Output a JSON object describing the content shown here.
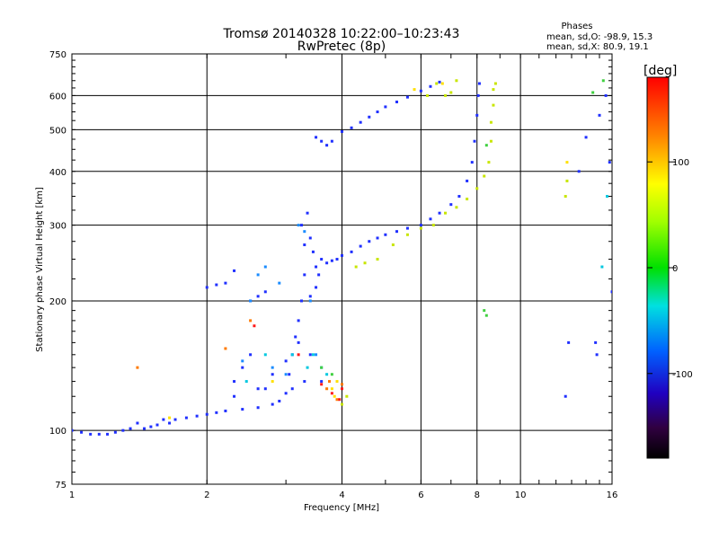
{
  "chart_data": {
    "type": "scatter",
    "title": "Tromsø 20140328 10:22:00–10:23:43",
    "subtitle": "RwPretec (8p)",
    "stats": {
      "heading": "Phases",
      "o_line": "mean, sd,O: -98.9, 15.3",
      "x_line": "mean, sd,X:  80.9, 19.1"
    },
    "xlabel": "Frequency [MHz]",
    "ylabel": "Stationary phase Virtual Height [km]",
    "x_scale": "log",
    "y_scale": "log",
    "xlim": [
      1,
      16
    ],
    "ylim": [
      75,
      750
    ],
    "x_ticks": [
      1,
      2,
      4,
      6,
      8,
      10,
      16
    ],
    "y_ticks": [
      75,
      100,
      200,
      300,
      400,
      500,
      600,
      750
    ],
    "grid": true,
    "colorbar": {
      "label": "[deg]",
      "min": -180,
      "max": 180,
      "ticks": [
        100,
        0,
        -100
      ]
    },
    "series": [
      {
        "phase": -100,
        "color": "#2030ff",
        "points": [
          [
            1.0,
            100
          ],
          [
            1.05,
            99
          ],
          [
            1.1,
            98
          ],
          [
            1.15,
            98
          ],
          [
            1.2,
            98
          ],
          [
            1.25,
            99
          ],
          [
            1.3,
            100
          ],
          [
            1.35,
            101
          ],
          [
            1.4,
            104
          ],
          [
            1.45,
            101
          ],
          [
            1.5,
            102
          ],
          [
            1.55,
            103
          ],
          [
            1.6,
            106
          ],
          [
            1.65,
            104
          ],
          [
            1.7,
            106
          ],
          [
            1.8,
            107
          ],
          [
            1.9,
            108
          ],
          [
            2.0,
            109
          ],
          [
            2.1,
            110
          ],
          [
            2.2,
            111
          ],
          [
            2.4,
            112
          ],
          [
            2.6,
            113
          ],
          [
            2.8,
            115
          ],
          [
            2.9,
            117
          ],
          [
            3.0,
            122
          ],
          [
            3.05,
            135
          ],
          [
            3.1,
            150
          ],
          [
            3.15,
            165
          ],
          [
            3.2,
            180
          ],
          [
            3.25,
            200
          ],
          [
            3.3,
            230
          ],
          [
            3.3,
            270
          ],
          [
            3.25,
            300
          ],
          [
            3.35,
            320
          ],
          [
            3.4,
            280
          ],
          [
            3.45,
            260
          ],
          [
            3.5,
            240
          ],
          [
            3.55,
            230
          ],
          [
            3.5,
            215
          ],
          [
            3.4,
            205
          ],
          [
            3.6,
            250
          ],
          [
            3.7,
            245
          ],
          [
            3.8,
            248
          ],
          [
            3.9,
            250
          ],
          [
            4.0,
            255
          ],
          [
            4.2,
            260
          ],
          [
            4.4,
            268
          ],
          [
            4.6,
            275
          ],
          [
            4.8,
            280
          ],
          [
            5.0,
            285
          ],
          [
            5.3,
            290
          ],
          [
            5.6,
            295
          ],
          [
            6.0,
            300
          ],
          [
            6.3,
            310
          ],
          [
            6.6,
            320
          ],
          [
            7.0,
            335
          ],
          [
            7.3,
            350
          ],
          [
            7.6,
            380
          ],
          [
            7.8,
            420
          ],
          [
            7.9,
            470
          ],
          [
            8.0,
            540
          ],
          [
            8.05,
            600
          ],
          [
            8.1,
            640
          ],
          [
            3.5,
            480
          ],
          [
            3.6,
            470
          ],
          [
            3.7,
            460
          ],
          [
            3.8,
            470
          ],
          [
            4.0,
            495
          ],
          [
            4.2,
            505
          ],
          [
            4.4,
            520
          ],
          [
            4.6,
            535
          ],
          [
            4.8,
            550
          ],
          [
            5.0,
            565
          ],
          [
            5.3,
            580
          ],
          [
            5.6,
            595
          ],
          [
            6.0,
            615
          ],
          [
            6.3,
            630
          ],
          [
            6.6,
            645
          ],
          [
            2.3,
            235
          ],
          [
            2.0,
            215
          ],
          [
            2.1,
            218
          ],
          [
            2.2,
            220
          ],
          [
            2.5,
            200
          ],
          [
            2.6,
            205
          ],
          [
            2.7,
            210
          ],
          [
            2.3,
            130
          ],
          [
            2.4,
            140
          ],
          [
            2.5,
            150
          ],
          [
            2.6,
            125
          ],
          [
            2.8,
            135
          ],
          [
            3.0,
            145
          ],
          [
            3.2,
            160
          ],
          [
            3.4,
            150
          ],
          [
            3.6,
            130
          ],
          [
            2.3,
            120
          ],
          [
            2.7,
            125
          ],
          [
            3.1,
            125
          ],
          [
            3.3,
            130
          ],
          [
            12.6,
            120
          ],
          [
            12.8,
            160
          ],
          [
            13.5,
            400
          ],
          [
            14.0,
            480
          ],
          [
            15.0,
            540
          ],
          [
            15.5,
            600
          ],
          [
            15.8,
            420
          ],
          [
            16.0,
            210
          ],
          [
            14.8,
            150
          ],
          [
            14.7,
            160
          ]
        ]
      },
      {
        "phase": -70,
        "color": "#1a8cff",
        "points": [
          [
            2.5,
            200
          ],
          [
            2.6,
            230
          ],
          [
            2.7,
            240
          ],
          [
            2.9,
            220
          ],
          [
            3.2,
            300
          ],
          [
            3.3,
            290
          ],
          [
            3.4,
            200
          ],
          [
            3.5,
            150
          ],
          [
            3.6,
            140
          ],
          [
            2.4,
            145
          ],
          [
            2.8,
            140
          ],
          [
            3.0,
            135
          ]
        ]
      },
      {
        "phase": -30,
        "color": "#00c8e0",
        "points": [
          [
            2.45,
            130
          ],
          [
            2.7,
            150
          ],
          [
            3.1,
            150
          ],
          [
            3.35,
            140
          ],
          [
            3.45,
            150
          ],
          [
            3.7,
            135
          ],
          [
            15.2,
            240
          ],
          [
            15.6,
            350
          ]
        ]
      },
      {
        "phase": 20,
        "color": "#40d040",
        "points": [
          [
            3.6,
            140
          ],
          [
            3.8,
            135
          ],
          [
            8.3,
            190
          ],
          [
            8.4,
            185
          ],
          [
            8.4,
            460
          ],
          [
            14.5,
            610
          ],
          [
            15.3,
            650
          ]
        ]
      },
      {
        "phase": 80,
        "color": "#c8e600",
        "points": [
          [
            4.3,
            240
          ],
          [
            4.5,
            245
          ],
          [
            4.8,
            250
          ],
          [
            5.2,
            270
          ],
          [
            5.6,
            285
          ],
          [
            6.0,
            295
          ],
          [
            6.4,
            300
          ],
          [
            6.8,
            320
          ],
          [
            7.2,
            330
          ],
          [
            7.6,
            345
          ],
          [
            8.0,
            365
          ],
          [
            8.3,
            390
          ],
          [
            8.5,
            420
          ],
          [
            8.6,
            470
          ],
          [
            8.6,
            520
          ],
          [
            8.7,
            570
          ],
          [
            8.7,
            620
          ],
          [
            8.8,
            640
          ],
          [
            6.8,
            600
          ],
          [
            7.0,
            610
          ],
          [
            6.2,
            600
          ],
          [
            6.5,
            640
          ],
          [
            7.2,
            650
          ],
          [
            4.1,
            120
          ],
          [
            4.0,
            115
          ],
          [
            12.6,
            350
          ],
          [
            12.7,
            380
          ]
        ]
      },
      {
        "phase": 110,
        "color": "#ffe000",
        "points": [
          [
            2.8,
            130
          ],
          [
            3.8,
            125
          ],
          [
            3.9,
            130
          ],
          [
            3.85,
            120
          ],
          [
            5.8,
            620
          ],
          [
            6.7,
            640
          ],
          [
            1.65,
            107
          ],
          [
            12.7,
            420
          ]
        ]
      },
      {
        "phase": 150,
        "color": "#ff7a00",
        "points": [
          [
            3.7,
            125
          ],
          [
            3.75,
            130
          ],
          [
            4.0,
            128
          ],
          [
            3.9,
            118
          ],
          [
            2.5,
            180
          ],
          [
            2.2,
            155
          ],
          [
            1.4,
            140
          ]
        ]
      },
      {
        "phase": 175,
        "color": "#ff1a1a",
        "points": [
          [
            3.6,
            128
          ],
          [
            3.8,
            122
          ],
          [
            3.95,
            118
          ],
          [
            4.0,
            125
          ],
          [
            2.55,
            175
          ],
          [
            3.2,
            150
          ]
        ]
      }
    ]
  }
}
